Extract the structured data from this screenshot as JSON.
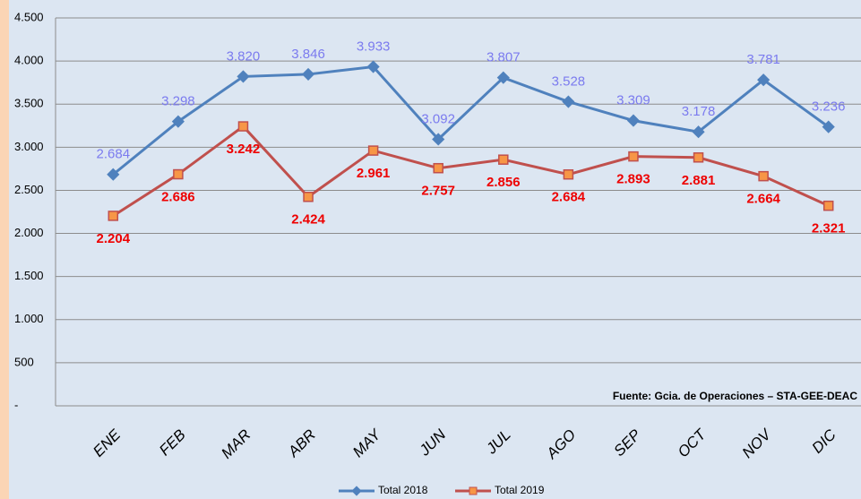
{
  "chart_data": {
    "type": "line",
    "categories": [
      "ENE",
      "FEB",
      "MAR",
      "ABR",
      "MAY",
      "JUN",
      "JUL",
      "AGO",
      "SEP",
      "OCT",
      "NOV",
      "DIC"
    ],
    "series": [
      {
        "name": "Total 2018",
        "color": "#4f81bd",
        "label_color": "#7b7bef",
        "values": [
          2684,
          3298,
          3820,
          3846,
          3933,
          3092,
          3807,
          3528,
          3309,
          3178,
          3781,
          3236
        ],
        "value_labels": [
          "2.684",
          "3.298",
          "3.820",
          "3.846",
          "3.933",
          "3.092",
          "3.807",
          "3.528",
          "3.309",
          "3.178",
          "3.781",
          "3.236"
        ]
      },
      {
        "name": "Total 2019",
        "color": "#c0504d",
        "label_color": "#ee0000",
        "values": [
          2204,
          2686,
          3242,
          2424,
          2961,
          2757,
          2856,
          2684,
          2893,
          2881,
          2664,
          2321
        ],
        "value_labels": [
          "2.204",
          "2.686",
          "3.242",
          "2.424",
          "2.961",
          "2.757",
          "2.856",
          "2.684",
          "2.893",
          "2.881",
          "2.664",
          "2.321"
        ]
      }
    ],
    "ylim": [
      0,
      4500
    ],
    "yticks": [
      {
        "value": 0,
        "label": "-"
      },
      500,
      {
        "value": 1000,
        "label": "1.000"
      },
      {
        "value": 1500,
        "label": "1.500"
      },
      {
        "value": 2000,
        "label": "2.000"
      },
      {
        "value": 2500,
        "label": "2.500"
      },
      {
        "value": 3000,
        "label": "3.000"
      },
      {
        "value": 3500,
        "label": "3.500"
      },
      {
        "value": 4000,
        "label": "4.000"
      },
      {
        "value": 4500,
        "label": "4.500"
      }
    ],
    "grid": true,
    "annotation": "Fuente: Gcia. de Operaciones – STA-GEE-DEAC"
  }
}
